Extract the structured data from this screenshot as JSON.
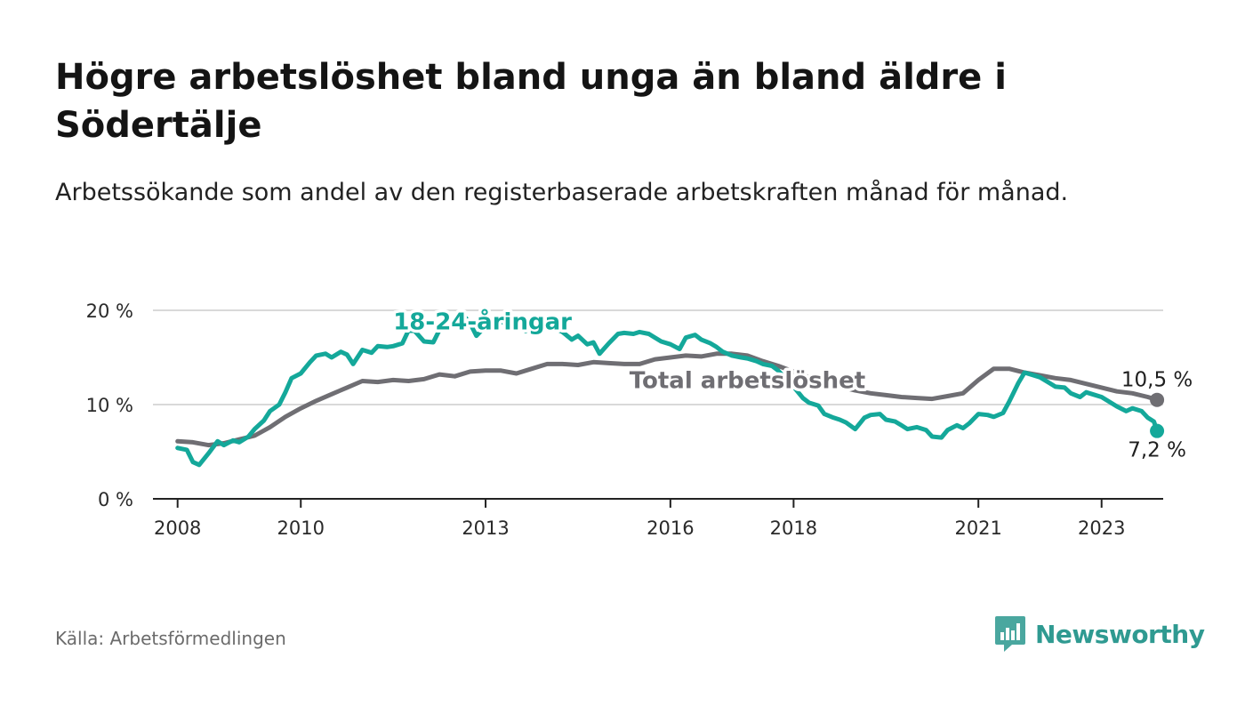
{
  "header": {
    "title": "Högre arbetslöshet bland unga än bland äldre i Södertälje",
    "subtitle": "Arbetssökande som andel av den registerbaserade arbetskraften månad för månad."
  },
  "footer": {
    "source": "Källa: Arbetsförmedlingen",
    "brand": "Newsworthy"
  },
  "colors": {
    "total": "#6f6e73",
    "youth": "#14a89a",
    "grid": "#d9d9d9",
    "axis": "#222222",
    "brand": "#2f9a91"
  },
  "chart_data": {
    "type": "line",
    "title": "Högre arbetslöshet bland unga än bland äldre i Södertälje",
    "xlabel": "",
    "ylabel": "",
    "xlim": [
      2007.6,
      2024.0
    ],
    "ylim": [
      0,
      20
    ],
    "x_ticks": [
      2008,
      2010,
      2013,
      2016,
      2018,
      2021,
      2023
    ],
    "x_tick_labels": [
      "2008",
      "2010",
      "2013",
      "2016",
      "2018",
      "2021",
      "2023"
    ],
    "y_ticks": [
      0,
      10,
      20
    ],
    "y_tick_labels": [
      "0 %",
      "10 %",
      "20 %"
    ],
    "grid": true,
    "series": [
      {
        "name": "Total arbetslöshet",
        "end_label": "10,5 %",
        "points": [
          [
            2008.0,
            6.1
          ],
          [
            2008.25,
            6.0
          ],
          [
            2008.5,
            5.7
          ],
          [
            2008.75,
            5.9
          ],
          [
            2009.0,
            6.3
          ],
          [
            2009.25,
            6.7
          ],
          [
            2009.5,
            7.6
          ],
          [
            2009.75,
            8.7
          ],
          [
            2010.0,
            9.6
          ],
          [
            2010.25,
            10.4
          ],
          [
            2010.5,
            11.1
          ],
          [
            2010.75,
            11.8
          ],
          [
            2011.0,
            12.5
          ],
          [
            2011.25,
            12.4
          ],
          [
            2011.5,
            12.6
          ],
          [
            2011.75,
            12.5
          ],
          [
            2012.0,
            12.7
          ],
          [
            2012.25,
            13.2
          ],
          [
            2012.5,
            13.0
          ],
          [
            2012.75,
            13.5
          ],
          [
            2013.0,
            13.6
          ],
          [
            2013.25,
            13.6
          ],
          [
            2013.5,
            13.3
          ],
          [
            2013.75,
            13.8
          ],
          [
            2014.0,
            14.3
          ],
          [
            2014.25,
            14.3
          ],
          [
            2014.5,
            14.2
          ],
          [
            2014.75,
            14.5
          ],
          [
            2015.0,
            14.4
          ],
          [
            2015.25,
            14.3
          ],
          [
            2015.5,
            14.3
          ],
          [
            2015.75,
            14.8
          ],
          [
            2016.0,
            15.0
          ],
          [
            2016.25,
            15.2
          ],
          [
            2016.5,
            15.1
          ],
          [
            2016.75,
            15.4
          ],
          [
            2017.0,
            15.4
          ],
          [
            2017.25,
            15.2
          ],
          [
            2017.5,
            14.6
          ],
          [
            2017.75,
            14.1
          ],
          [
            2018.0,
            13.5
          ],
          [
            2018.25,
            12.9
          ],
          [
            2018.5,
            12.4
          ],
          [
            2018.75,
            11.9
          ],
          [
            2019.0,
            11.5
          ],
          [
            2019.25,
            11.2
          ],
          [
            2019.5,
            11.0
          ],
          [
            2019.75,
            10.8
          ],
          [
            2020.0,
            10.7
          ],
          [
            2020.25,
            10.6
          ],
          [
            2020.5,
            10.9
          ],
          [
            2020.75,
            11.2
          ],
          [
            2021.0,
            12.6
          ],
          [
            2021.25,
            13.8
          ],
          [
            2021.5,
            13.8
          ],
          [
            2021.75,
            13.4
          ],
          [
            2022.0,
            13.1
          ],
          [
            2022.25,
            12.8
          ],
          [
            2022.5,
            12.6
          ],
          [
            2022.75,
            12.2
          ],
          [
            2023.0,
            11.8
          ],
          [
            2023.25,
            11.4
          ],
          [
            2023.5,
            11.2
          ],
          [
            2023.75,
            10.8
          ],
          [
            2023.9,
            10.5
          ]
        ]
      },
      {
        "name": "18-24-åringar",
        "end_label": "7,2 %",
        "points": [
          [
            2008.0,
            5.4
          ],
          [
            2008.15,
            5.2
          ],
          [
            2008.25,
            3.9
          ],
          [
            2008.35,
            3.6
          ],
          [
            2008.5,
            4.8
          ],
          [
            2008.65,
            6.1
          ],
          [
            2008.75,
            5.7
          ],
          [
            2008.9,
            6.2
          ],
          [
            2009.0,
            6.0
          ],
          [
            2009.15,
            6.6
          ],
          [
            2009.25,
            7.4
          ],
          [
            2009.4,
            8.3
          ],
          [
            2009.5,
            9.3
          ],
          [
            2009.65,
            10.0
          ],
          [
            2009.75,
            11.3
          ],
          [
            2009.85,
            12.8
          ],
          [
            2010.0,
            13.3
          ],
          [
            2010.15,
            14.5
          ],
          [
            2010.25,
            15.2
          ],
          [
            2010.4,
            15.4
          ],
          [
            2010.5,
            15.0
          ],
          [
            2010.65,
            15.6
          ],
          [
            2010.75,
            15.3
          ],
          [
            2010.85,
            14.3
          ],
          [
            2011.0,
            15.8
          ],
          [
            2011.15,
            15.5
          ],
          [
            2011.25,
            16.2
          ],
          [
            2011.4,
            16.1
          ],
          [
            2011.5,
            16.2
          ],
          [
            2011.65,
            16.5
          ],
          [
            2011.75,
            17.9
          ],
          [
            2011.85,
            17.8
          ],
          [
            2012.0,
            16.7
          ],
          [
            2012.15,
            16.6
          ],
          [
            2012.25,
            17.9
          ],
          [
            2012.4,
            18.2
          ],
          [
            2012.5,
            19.0
          ],
          [
            2012.65,
            19.4
          ],
          [
            2012.75,
            18.6
          ],
          [
            2012.85,
            17.3
          ],
          [
            2013.0,
            18.3
          ],
          [
            2013.15,
            19.0
          ],
          [
            2013.25,
            18.8
          ],
          [
            2013.4,
            18.4
          ],
          [
            2013.5,
            18.7
          ],
          [
            2013.65,
            17.8
          ],
          [
            2013.75,
            18.6
          ],
          [
            2013.85,
            18.4
          ],
          [
            2014.0,
            18.2
          ],
          [
            2014.15,
            18.0
          ],
          [
            2014.25,
            17.7
          ],
          [
            2014.4,
            16.9
          ],
          [
            2014.5,
            17.3
          ],
          [
            2014.65,
            16.4
          ],
          [
            2014.75,
            16.6
          ],
          [
            2014.85,
            15.4
          ],
          [
            2015.0,
            16.5
          ],
          [
            2015.15,
            17.5
          ],
          [
            2015.25,
            17.6
          ],
          [
            2015.4,
            17.5
          ],
          [
            2015.5,
            17.7
          ],
          [
            2015.65,
            17.5
          ],
          [
            2015.75,
            17.1
          ],
          [
            2015.85,
            16.7
          ],
          [
            2016.0,
            16.4
          ],
          [
            2016.15,
            15.9
          ],
          [
            2016.25,
            17.1
          ],
          [
            2016.4,
            17.4
          ],
          [
            2016.5,
            16.9
          ],
          [
            2016.65,
            16.5
          ],
          [
            2016.75,
            16.1
          ],
          [
            2016.85,
            15.6
          ],
          [
            2017.0,
            15.2
          ],
          [
            2017.15,
            15.0
          ],
          [
            2017.25,
            14.9
          ],
          [
            2017.4,
            14.6
          ],
          [
            2017.5,
            14.3
          ],
          [
            2017.65,
            14.1
          ],
          [
            2017.75,
            13.6
          ],
          [
            2017.85,
            12.9
          ],
          [
            2018.0,
            11.9
          ],
          [
            2018.15,
            10.7
          ],
          [
            2018.25,
            10.2
          ],
          [
            2018.4,
            9.9
          ],
          [
            2018.5,
            9.0
          ],
          [
            2018.65,
            8.6
          ],
          [
            2018.75,
            8.4
          ],
          [
            2018.85,
            8.1
          ],
          [
            2019.0,
            7.4
          ],
          [
            2019.15,
            8.6
          ],
          [
            2019.25,
            8.9
          ],
          [
            2019.4,
            9.0
          ],
          [
            2019.5,
            8.4
          ],
          [
            2019.65,
            8.2
          ],
          [
            2019.75,
            7.8
          ],
          [
            2019.85,
            7.4
          ],
          [
            2020.0,
            7.6
          ],
          [
            2020.15,
            7.3
          ],
          [
            2020.25,
            6.6
          ],
          [
            2020.4,
            6.5
          ],
          [
            2020.5,
            7.3
          ],
          [
            2020.65,
            7.8
          ],
          [
            2020.75,
            7.5
          ],
          [
            2020.85,
            8.0
          ],
          [
            2021.0,
            9.0
          ],
          [
            2021.15,
            8.9
          ],
          [
            2021.25,
            8.7
          ],
          [
            2021.4,
            9.1
          ],
          [
            2021.5,
            10.3
          ],
          [
            2021.65,
            12.3
          ],
          [
            2021.75,
            13.4
          ],
          [
            2021.85,
            13.2
          ],
          [
            2022.0,
            12.9
          ],
          [
            2022.15,
            12.3
          ],
          [
            2022.25,
            11.9
          ],
          [
            2022.4,
            11.8
          ],
          [
            2022.5,
            11.2
          ],
          [
            2022.65,
            10.8
          ],
          [
            2022.75,
            11.3
          ],
          [
            2022.85,
            11.1
          ],
          [
            2023.0,
            10.8
          ],
          [
            2023.15,
            10.2
          ],
          [
            2023.25,
            9.8
          ],
          [
            2023.4,
            9.3
          ],
          [
            2023.5,
            9.6
          ],
          [
            2023.65,
            9.3
          ],
          [
            2023.75,
            8.6
          ],
          [
            2023.85,
            8.2
          ],
          [
            2023.9,
            7.2
          ]
        ]
      }
    ],
    "annotations": [
      {
        "series": "18-24-åringar",
        "text": "18-24-åringar",
        "x": 2012.95,
        "y": 18.8
      },
      {
        "series": "Total arbetslöshet",
        "text": "Total arbetslöshet",
        "x": 2017.25,
        "y": 12.6
      }
    ]
  }
}
